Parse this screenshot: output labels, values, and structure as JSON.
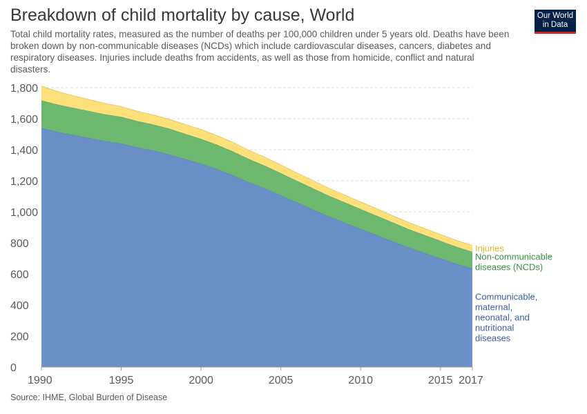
{
  "header": {
    "title": "Breakdown of child mortality by cause, World",
    "subtitle": "Total child mortality rates, measured as the number of deaths per 100,000 children under 5 years old. Deaths have been broken down by non-communicable diseases (NCDs) which include cardiovascular diseases, cancers, diabetes and respiratory diseases. Injuries include deaths from accidents, as well as those from homicide, conflict and natural disasters."
  },
  "logo": {
    "line1": "Our World",
    "line2": "in Data",
    "bg_color": "#002147",
    "accent_color": "#ce261e"
  },
  "footer": {
    "source": "Source: IHME, Global Burden of Disease"
  },
  "chart_data": {
    "type": "area",
    "stacked": true,
    "x": [
      1990,
      1991,
      1992,
      1993,
      1994,
      1995,
      1996,
      1997,
      1998,
      1999,
      2000,
      2001,
      2002,
      2003,
      2004,
      2005,
      2006,
      2007,
      2008,
      2009,
      2010,
      2011,
      2012,
      2013,
      2014,
      2015,
      2016,
      2017
    ],
    "series": [
      {
        "name": "Communicable, maternal, neonatal, and nutritional diseases",
        "label_lines": [
          "Communicable,",
          "maternal,",
          "neonatal, and",
          "nutritional",
          "diseases"
        ],
        "color": "#6b8fc7",
        "label_color": "#3a5fa8",
        "values": [
          1540,
          1515,
          1495,
          1475,
          1455,
          1440,
          1415,
          1395,
          1370,
          1340,
          1310,
          1275,
          1235,
          1190,
          1150,
          1105,
          1060,
          1015,
          970,
          930,
          890,
          850,
          810,
          770,
          735,
          700,
          665,
          635
        ]
      },
      {
        "name": "Non-communicable diseases (NCDs)",
        "label_lines": [
          "Non-communicable",
          "diseases (NCDs)"
        ],
        "color": "#6bb86e",
        "label_color": "#3b8f3f",
        "values": [
          178,
          176,
          175,
          174,
          173,
          172,
          170,
          168,
          166,
          163,
          160,
          157,
          154,
          150,
          147,
          144,
          140,
          137,
          134,
          131,
          128,
          125,
          122,
          119,
          116,
          113,
          110,
          108
        ]
      },
      {
        "name": "Injuries",
        "label_lines": [
          "Injuries"
        ],
        "color": "#fde07a",
        "label_color": "#e5b72b",
        "values": [
          92,
          84,
          78,
          74,
          70,
          66,
          63,
          61,
          60,
          60,
          60,
          59,
          58,
          56,
          55,
          53,
          51,
          50,
          48,
          47,
          46,
          45,
          44,
          43,
          42,
          41,
          41,
          40
        ]
      }
    ],
    "x_ticks": [
      "1990",
      "1995",
      "2000",
      "2005",
      "2010",
      "2015",
      "2017"
    ],
    "x_tick_values": [
      1990,
      1995,
      2000,
      2005,
      2010,
      2015,
      2017
    ],
    "y_ticks": [
      "0",
      "200",
      "400",
      "600",
      "800",
      "1,000",
      "1,200",
      "1,400",
      "1,600",
      "1,800"
    ],
    "y_tick_values": [
      0,
      200,
      400,
      600,
      800,
      1000,
      1200,
      1400,
      1600,
      1800
    ],
    "xlim": [
      1990,
      2017
    ],
    "ylim": [
      0,
      1800
    ],
    "grid": true,
    "legend": "right-end labels"
  }
}
